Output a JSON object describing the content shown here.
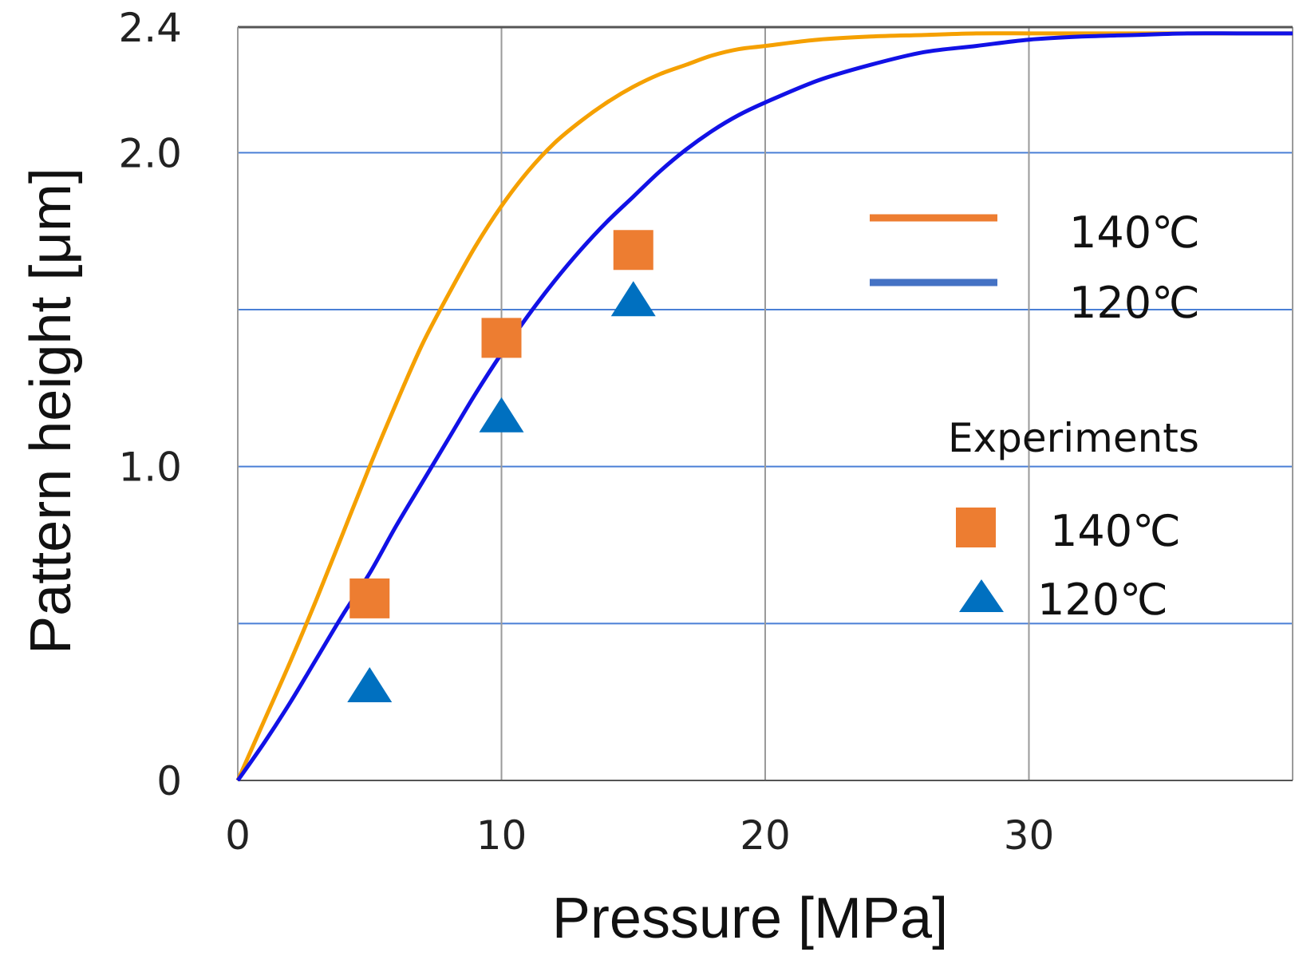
{
  "chart_data": {
    "type": "line",
    "title": "",
    "xlabel": "Pressure [MPa]",
    "ylabel": "Pattern height [μm]",
    "xlim": [
      0,
      40
    ],
    "ylim": [
      0,
      2.4
    ],
    "xticks": [
      0,
      10,
      20,
      30
    ],
    "x_tick_labels": [
      "0",
      "10",
      "20",
      "30"
    ],
    "y_tick_labels": [
      {
        "label": "0",
        "value": 0
      },
      {
        "label": "1.0",
        "value": 1.0
      },
      {
        "label": "2.0",
        "value": 2.0
      },
      {
        "label": "2.4",
        "value": 2.4
      }
    ],
    "horizontal_gridlines": [
      0.5,
      1.0,
      1.5,
      2.0
    ],
    "series": [
      {
        "name": "140℃",
        "kind": "line",
        "color": "#F5A000",
        "x": [
          0,
          1,
          2,
          3,
          4,
          5,
          6,
          7,
          8,
          9,
          10,
          11,
          12,
          13,
          14,
          15,
          16,
          17,
          18,
          19,
          20,
          22,
          24,
          26,
          28,
          30,
          32,
          34,
          36,
          38,
          40
        ],
        "y": [
          0,
          0.19,
          0.38,
          0.58,
          0.79,
          1.0,
          1.2,
          1.39,
          1.55,
          1.7,
          1.83,
          1.94,
          2.03,
          2.1,
          2.16,
          2.21,
          2.25,
          2.28,
          2.31,
          2.33,
          2.34,
          2.36,
          2.37,
          2.375,
          2.38,
          2.38,
          2.38,
          2.38,
          2.38,
          2.38,
          2.38
        ]
      },
      {
        "name": "120℃",
        "kind": "line",
        "color": "#1111E6",
        "x": [
          0,
          1,
          2,
          3,
          4,
          5,
          6,
          7,
          8,
          9,
          10,
          11,
          12,
          13,
          14,
          15,
          16,
          17,
          18,
          19,
          20,
          22,
          24,
          26,
          28,
          30,
          32,
          34,
          36,
          38,
          40
        ],
        "y": [
          0,
          0.12,
          0.25,
          0.39,
          0.53,
          0.66,
          0.81,
          0.95,
          1.09,
          1.23,
          1.36,
          1.48,
          1.59,
          1.69,
          1.78,
          1.86,
          1.94,
          2.01,
          2.07,
          2.12,
          2.16,
          2.23,
          2.28,
          2.32,
          2.34,
          2.36,
          2.37,
          2.375,
          2.38,
          2.38,
          2.38
        ]
      },
      {
        "name": "140℃",
        "kind": "scatter",
        "marker": "square",
        "color": "#ED7D31",
        "x": [
          5,
          10,
          15
        ],
        "y": [
          0.58,
          1.41,
          1.69
        ]
      },
      {
        "name": "120℃",
        "kind": "scatter",
        "marker": "triangle",
        "color": "#0070C0",
        "x": [
          5,
          10,
          15
        ],
        "y": [
          0.3,
          1.16,
          1.53
        ]
      }
    ],
    "legend": {
      "position": "right",
      "line_entries": [
        {
          "label": "140℃",
          "color": "#ED7D31"
        },
        {
          "label": "120℃",
          "color": "#4472C4"
        }
      ],
      "experiments_title": "Experiments",
      "marker_entries": [
        {
          "label": "140℃",
          "marker": "square",
          "color": "#ED7D31"
        },
        {
          "label": "120℃",
          "marker": "triangle",
          "color": "#0070C0"
        }
      ]
    }
  }
}
